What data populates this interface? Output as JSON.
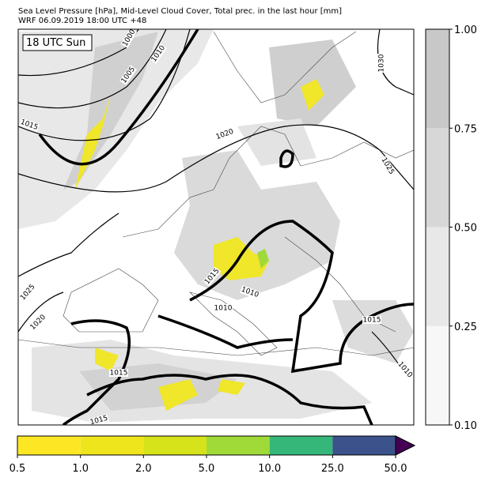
{
  "header": {
    "title": "Sea Level Pressure [hPa], Mid-Level Cloud Cover, Total prec. in the last hour [mm]",
    "subtitle": "WRF 06.09.2019 18:00 UTC +48"
  },
  "map": {
    "time_label": "18 UTC Sun",
    "contour_labels": [
      1000,
      1005,
      1010,
      1015,
      1020,
      1025,
      1030,
      1015,
      1010,
      1010,
      1025,
      1020,
      1015,
      1015,
      1010,
      1015
    ]
  },
  "cloud_colorbar": {
    "ticks": [
      {
        "value": 0.1,
        "label": "0.10"
      },
      {
        "value": 0.25,
        "label": "0.25"
      },
      {
        "value": 0.5,
        "label": "0.50"
      },
      {
        "value": 0.75,
        "label": "0.75"
      },
      {
        "value": 1.0,
        "label": "1.00"
      }
    ],
    "colors": [
      "#f7f7f7",
      "#e8e8e8",
      "#d7d7d7",
      "#c8c8c8"
    ]
  },
  "precip_colorbar": {
    "ticks": [
      0.5,
      {
        "value": 1.0,
        "label": "1.0"
      },
      {
        "value": 2.0,
        "label": "2.0"
      },
      {
        "value": 5.0,
        "label": "5.0"
      },
      {
        "value": 10.0,
        "label": "10.0"
      },
      {
        "value": 25.0,
        "label": "25.0"
      },
      {
        "value": 50.0,
        "label": "50.0"
      }
    ],
    "colors": [
      "#fde725",
      "#efe51c",
      "#d6e21a",
      "#a0da39",
      "#35b779",
      "#3b528b"
    ],
    "extend_color": "#440154"
  }
}
